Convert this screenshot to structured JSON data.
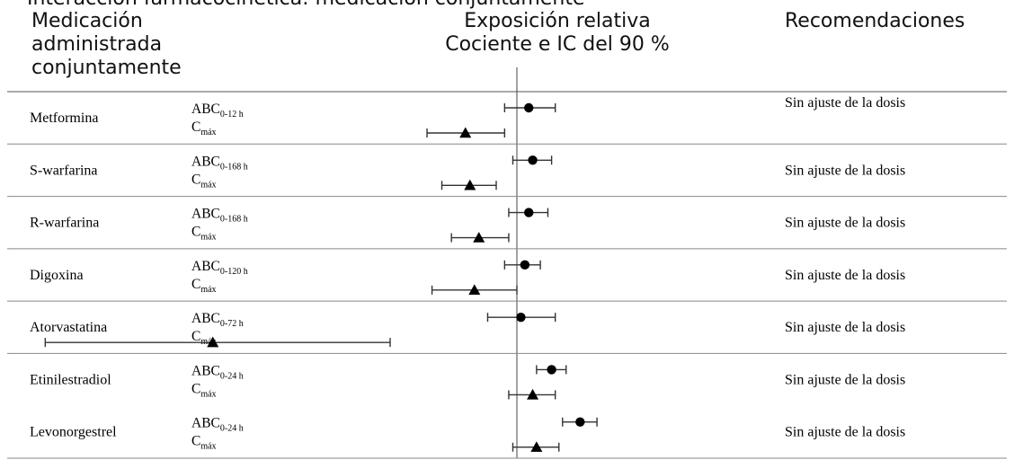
{
  "header": {
    "top_line": "Interacción farmacocinética: medicación conjuntamente",
    "col1": "Medicación administrada conjuntamente",
    "col2_line1": "Exposición relativa",
    "col2_line2": "Cociente e IC del 90 %",
    "col3": "Recomendaciones"
  },
  "chart_data": {
    "type": "forest",
    "reference_ratio": 1.0,
    "markers": {
      "ABC": "circle",
      "Cmáx": "triangle"
    },
    "rows": [
      {
        "drug": "Metformina",
        "recommendation": "Sin ajuste de la dosis",
        "abc_label": "ABC",
        "abc_sub": "0-12 h",
        "cmax_label": "C",
        "cmax_sub": "máx",
        "abc": {
          "est": 1.03,
          "lo": 0.97,
          "hi": 1.1
        },
        "cmax": {
          "est": 0.88,
          "lo": 0.8,
          "hi": 0.97
        }
      },
      {
        "drug": "S-warfarina",
        "recommendation": "Sin ajuste de la dosis",
        "abc_label": "ABC",
        "abc_sub": "0-168 h",
        "cmax_label": "C",
        "cmax_sub": "máx",
        "abc": {
          "est": 1.04,
          "lo": 0.99,
          "hi": 1.09
        },
        "cmax": {
          "est": 0.89,
          "lo": 0.83,
          "hi": 0.95
        }
      },
      {
        "drug": "R-warfarina",
        "recommendation": "Sin ajuste de la dosis",
        "abc_label": "ABC",
        "abc_sub": "0-168 h",
        "cmax_label": "C",
        "cmax_sub": "máx",
        "abc": {
          "est": 1.03,
          "lo": 0.98,
          "hi": 1.08
        },
        "cmax": {
          "est": 0.91,
          "lo": 0.85,
          "hi": 0.98
        }
      },
      {
        "drug": "Digoxina",
        "recommendation": "Sin ajuste de la dosis",
        "abc_label": "ABC",
        "abc_sub": "0-120 h",
        "cmax_label": "C",
        "cmax_sub": "máx",
        "abc": {
          "est": 1.02,
          "lo": 0.97,
          "hi": 1.06
        },
        "cmax": {
          "est": 0.9,
          "lo": 0.81,
          "hi": 1.0
        }
      },
      {
        "drug": "Atorvastatina",
        "recommendation": "Sin ajuste de la dosis",
        "abc_label": "ABC",
        "abc_sub": "0-72 h",
        "cmax_label": "C",
        "cmax_sub": "máx",
        "abc": {
          "est": 1.01,
          "lo": 0.93,
          "hi": 1.1
        },
        "cmax": {
          "est": 0.47,
          "lo": 0.31,
          "hi": 0.73
        }
      },
      {
        "drug": "Etinilestradiol",
        "recommendation": "Sin ajuste de la dosis",
        "abc_label": "ABC",
        "abc_sub": "0-24 h",
        "cmax_label": "C",
        "cmax_sub": "máx",
        "abc": {
          "est": 1.09,
          "lo": 1.05,
          "hi": 1.13
        },
        "cmax": {
          "est": 1.04,
          "lo": 0.98,
          "hi": 1.1
        }
      },
      {
        "drug": "Levonorgestrel",
        "recommendation": "Sin ajuste de la dosis",
        "abc_label": "ABC",
        "abc_sub": "0-24 h",
        "cmax_label": "C",
        "cmax_sub": "máx",
        "abc": {
          "est": 1.17,
          "lo": 1.12,
          "hi": 1.22
        },
        "cmax": {
          "est": 1.05,
          "lo": 0.99,
          "hi": 1.11
        }
      }
    ]
  }
}
